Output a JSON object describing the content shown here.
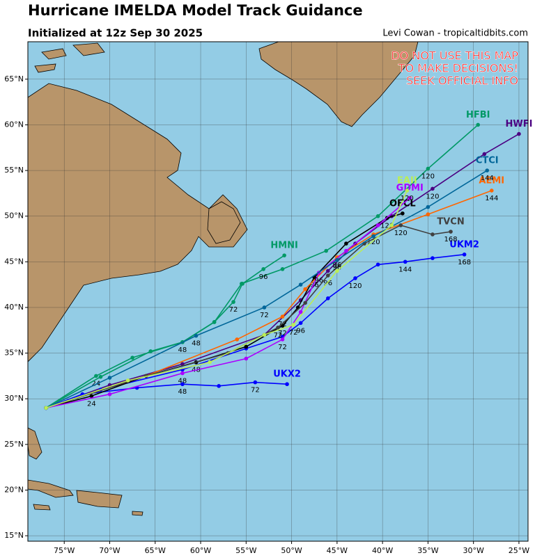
{
  "chart_data": {
    "type": "track-map",
    "title": "Hurricane IMELDA Model Track Guidance",
    "subtitle": "Initialized at 12z Sep 30 2025",
    "credit": "Levi Cowan - tropicaltidbits.com",
    "warning": [
      "DO NOT USE THIS MAP",
      "TO MAKE DECISIONS!",
      "SEEK OFFICIAL INFO"
    ],
    "xlim": [
      -79,
      -24
    ],
    "ylim": [
      14.4,
      69.1
    ],
    "xticks": [
      {
        "value": -75,
        "label": "75°W"
      },
      {
        "value": -70,
        "label": "70°W"
      },
      {
        "value": -65,
        "label": "65°W"
      },
      {
        "value": -60,
        "label": "60°W"
      },
      {
        "value": -55,
        "label": "55°W"
      },
      {
        "value": -50,
        "label": "50°W"
      },
      {
        "value": -45,
        "label": "45°W"
      },
      {
        "value": -40,
        "label": "40°W"
      },
      {
        "value": -35,
        "label": "35°W"
      },
      {
        "value": -30,
        "label": "30°W"
      },
      {
        "value": -25,
        "label": "25°W"
      }
    ],
    "yticks": [
      {
        "value": 15,
        "label": "15°N"
      },
      {
        "value": 20,
        "label": "20°N"
      },
      {
        "value": 25,
        "label": "25°N"
      },
      {
        "value": 30,
        "label": "30°N"
      },
      {
        "value": 35,
        "label": "35°N"
      },
      {
        "value": 40,
        "label": "40°N"
      },
      {
        "value": 45,
        "label": "45°N"
      },
      {
        "value": 50,
        "label": "50°N"
      },
      {
        "value": 55,
        "label": "55°N"
      },
      {
        "value": 60,
        "label": "60°N"
      },
      {
        "value": 65,
        "label": "65°N"
      }
    ],
    "grid": true,
    "series": [
      {
        "name": "HFBI",
        "color": "#009966",
        "x": [
          -77,
          -71.5,
          -67.5,
          -62,
          -58.5,
          -55.5,
          -51,
          -46.2,
          -40.5,
          -35,
          -29.5
        ],
        "y": [
          29,
          32.5,
          34.5,
          36.2,
          38.4,
          42.6,
          44.2,
          46.2,
          50,
          55.2,
          60
        ],
        "hours": [
          null,
          24,
          null,
          48,
          null,
          null,
          null,
          null,
          null,
          120,
          null
        ]
      },
      {
        "name": "HMNI",
        "color": "#009966",
        "x": [
          -77,
          -71,
          -65.5,
          -62,
          -58.5,
          -56.4,
          -55.4,
          -53.1,
          -50.8
        ],
        "y": [
          29,
          32.4,
          35.2,
          36.2,
          38.4,
          40.6,
          42.6,
          44.2,
          45.7
        ],
        "hours": [
          null,
          null,
          null,
          null,
          null,
          72,
          null,
          96,
          null
        ]
      },
      {
        "name": "HWFI",
        "color": "#4b0082",
        "x": [
          -77,
          -70,
          -62,
          -53,
          -49,
          -46,
          -43,
          -39,
          -34.5,
          -28.8,
          -25
        ],
        "y": [
          29,
          31.5,
          33.8,
          37,
          40.8,
          44,
          47,
          50,
          53,
          56.8,
          59
        ],
        "hours": [
          null,
          null,
          null,
          null,
          null,
          null,
          null,
          null,
          120,
          null,
          null
        ]
      },
      {
        "name": "UKX2",
        "color": "#0000ff",
        "x": [
          -77,
          -73,
          -67,
          -62,
          -58,
          -54,
          -50.5
        ],
        "y": [
          29,
          30.5,
          31.2,
          31.6,
          31.4,
          31.8,
          31.6
        ],
        "hours": [
          null,
          null,
          null,
          48,
          null,
          72,
          null
        ]
      },
      {
        "name": "UKM2",
        "color": "#0000ff",
        "x": [
          -77,
          -71,
          -62,
          -55,
          -51,
          -49,
          -46,
          -43,
          -40.5,
          -37.5,
          -34.5,
          -31
        ],
        "y": [
          29,
          31,
          33.2,
          35.5,
          36.8,
          38.3,
          41,
          43.2,
          44.7,
          45,
          45.4,
          45.8
        ],
        "hours": [
          null,
          null,
          null,
          null,
          null,
          96,
          null,
          120,
          null,
          144,
          null,
          168
        ]
      },
      {
        "name": "OFCL",
        "color": "#000000",
        "x": [
          -77,
          -72,
          -66,
          -60.5,
          -55,
          -51,
          -49.3,
          -47.5,
          -44,
          -39.5,
          -37.8
        ],
        "y": [
          29,
          30.3,
          32.5,
          34,
          35.7,
          38,
          40,
          43.3,
          47,
          49.8,
          50.3
        ],
        "hours": [
          null,
          24,
          null,
          48,
          null,
          72,
          null,
          96,
          null,
          120,
          null
        ]
      },
      {
        "name": "AEMI",
        "color": "#ff6600",
        "x": [
          -77,
          -66,
          -56,
          -51,
          -48.5,
          -45,
          -41,
          -35,
          -28
        ],
        "y": [
          29,
          32.5,
          36.5,
          39,
          42,
          45.5,
          48,
          50.2,
          52.8
        ],
        "hours": [
          null,
          null,
          null,
          72,
          null,
          96,
          120,
          null,
          144
        ]
      },
      {
        "name": "GDMI",
        "color": "#aa00ff",
        "x": [
          -77,
          -70,
          -62,
          -55,
          -51,
          -49,
          -47,
          -44,
          -40.5,
          -37
        ],
        "y": [
          29,
          30.5,
          32.8,
          34.4,
          36.5,
          39.5,
          43.8,
          46.2,
          49,
          52
        ],
        "hours": [
          null,
          null,
          48,
          null,
          72,
          null,
          96,
          null,
          null,
          null
        ]
      },
      {
        "name": "TVCN",
        "color": "#404040",
        "x": [
          -77,
          -66,
          -57,
          -51.5,
          -48.5,
          -46,
          -42,
          -38,
          -34.5,
          -32.5
        ],
        "y": [
          29,
          32.5,
          35,
          37.8,
          40.5,
          43.5,
          47,
          49,
          48,
          48.3
        ],
        "hours": [
          null,
          null,
          null,
          72,
          null,
          96,
          null,
          120,
          null,
          168
        ]
      },
      {
        "name": "CTCI",
        "color": "#006699",
        "x": [
          -77,
          -70,
          -60.5,
          -53,
          -49,
          -45,
          -41,
          -35,
          -28.5
        ],
        "y": [
          29,
          32.3,
          36.9,
          40,
          42.5,
          45.2,
          47.8,
          51,
          55
        ],
        "hours": [
          null,
          null,
          48,
          72,
          null,
          96,
          null,
          null,
          144
        ]
      },
      {
        "name": "EAII",
        "color": "#bbee55",
        "x": [
          -77,
          -68,
          -59,
          -53,
          -49.8,
          -45,
          -39,
          -37.3
        ],
        "y": [
          29,
          32,
          34,
          37,
          38.1,
          44,
          49,
          52.8
        ],
        "hours": [
          null,
          null,
          null,
          null,
          72,
          null,
          null,
          120
        ]
      }
    ]
  }
}
